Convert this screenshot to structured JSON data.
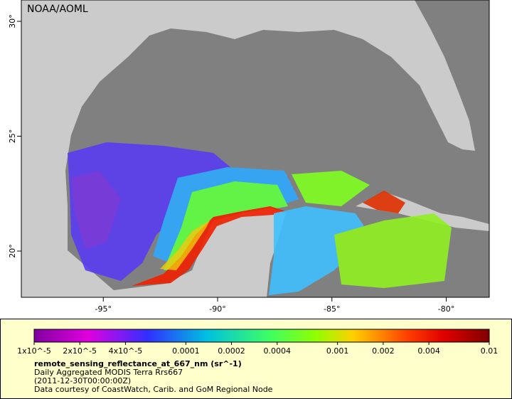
{
  "header": {
    "credit": "NOAA/AOML"
  },
  "map": {
    "lat_ticks": [
      {
        "value": 30,
        "label": "30°"
      },
      {
        "value": 25,
        "label": "25°"
      },
      {
        "value": 20,
        "label": "20°"
      }
    ],
    "lon_ticks": [
      {
        "value": -95,
        "label": "-95°"
      },
      {
        "value": -90,
        "label": "-90°"
      },
      {
        "value": -85,
        "label": "-85°"
      },
      {
        "value": -80,
        "label": "-80°"
      }
    ]
  },
  "colorbar": {
    "scale": "log",
    "ticks": [
      {
        "value": 1e-05,
        "label": "1x10^-5"
      },
      {
        "value": 2e-05,
        "label": "2x10^-5"
      },
      {
        "value": 4e-05,
        "label": "4x10^-5"
      },
      {
        "value": 0.0001,
        "label": "0.0001"
      },
      {
        "value": 0.0002,
        "label": "0.0002"
      },
      {
        "value": 0.0004,
        "label": "0.0004"
      },
      {
        "value": 0.001,
        "label": "0.001"
      },
      {
        "value": 0.002,
        "label": "0.002"
      },
      {
        "value": 0.004,
        "label": "0.004"
      },
      {
        "value": 0.01,
        "label": "0.01"
      }
    ]
  },
  "legend": {
    "variable": "remote_sensing_reflectance_at_667_nm (sr^-1)",
    "lines": [
      "Daily Aggregated MODIS Terra Rrs667",
      "(2011-12-30T00:00:00Z)",
      "Data courtesy of CoastWatch, Carib. and GoM Regional Node"
    ]
  }
}
